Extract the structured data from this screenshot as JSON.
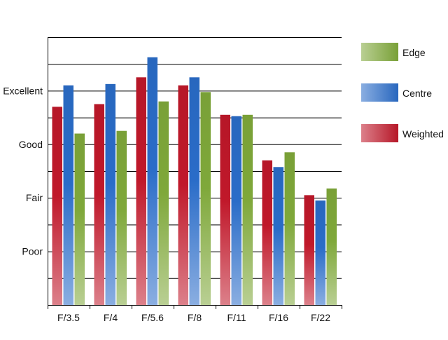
{
  "chart_data": {
    "type": "bar",
    "title": "",
    "xlabel": "",
    "ylabel": "",
    "categories": [
      "F/3.5",
      "F/4",
      "F/5.6",
      "F/8",
      "F/11",
      "F/16",
      "F/22"
    ],
    "y_tick_labels": [
      {
        "value": 2,
        "label": "Poor"
      },
      {
        "value": 4,
        "label": "Fair"
      },
      {
        "value": 6,
        "label": "Good"
      },
      {
        "value": 8,
        "label": "Excellent"
      }
    ],
    "ylim": [
      0,
      10
    ],
    "grid": true,
    "legend_position": "right",
    "series": [
      {
        "name": "Weighted",
        "color": "#c0182a",
        "values": [
          7.4,
          7.5,
          8.5,
          8.2,
          7.1,
          5.4,
          4.1
        ]
      },
      {
        "name": "Centre",
        "color": "#2a6cc8",
        "values": [
          8.2,
          8.25,
          9.25,
          8.5,
          7.05,
          5.15,
          3.9
        ]
      },
      {
        "name": "Edge",
        "color": "#7fa83a",
        "values": [
          6.4,
          6.5,
          7.6,
          7.95,
          7.1,
          5.7,
          4.35
        ]
      }
    ],
    "legend_order": [
      "Edge",
      "Centre",
      "Weighted"
    ]
  }
}
